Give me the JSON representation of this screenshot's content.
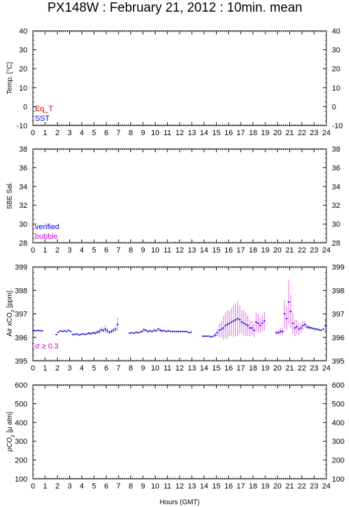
{
  "title": "PX148W : February 21, 2012 : 10min. mean",
  "xlabel": "Hours (GMT)",
  "colors": {
    "eq_t": "#cc0000",
    "sst": "#0000cc",
    "verified": "#0000cc",
    "bubble": "#cc00cc",
    "sigma": "#cc00cc",
    "air_point": "#0000cc",
    "air_error": "#ee66ee"
  },
  "chart_data": [
    {
      "type": "line",
      "ylabel": "Temp. [°C]",
      "xlim": [
        0,
        24
      ],
      "ylim": [
        -10,
        40
      ],
      "yticks": [
        -10,
        0,
        10,
        20,
        30,
        40
      ],
      "xticks": [
        0,
        1,
        2,
        3,
        4,
        5,
        6,
        7,
        8,
        9,
        10,
        11,
        12,
        13,
        14,
        15,
        16,
        17,
        18,
        19,
        20,
        21,
        22,
        23,
        24
      ],
      "legend": [
        "Eq_T",
        "SST"
      ],
      "legend_position": "bottom-left",
      "series": []
    },
    {
      "type": "line",
      "ylabel": "SBE Sal.",
      "xlim": [
        0,
        24
      ],
      "ylim": [
        28,
        38
      ],
      "yticks": [
        28,
        30,
        32,
        34,
        36,
        38
      ],
      "xticks": [
        0,
        1,
        2,
        3,
        4,
        5,
        6,
        7,
        8,
        9,
        10,
        11,
        12,
        13,
        14,
        15,
        16,
        17,
        18,
        19,
        20,
        21,
        22,
        23,
        24
      ],
      "legend": [
        "verified",
        "bubble"
      ],
      "legend_position": "bottom-left",
      "series": []
    },
    {
      "type": "scatter",
      "ylabel": "Air xCO2 [ppm]",
      "ylabel_main": "Air xCO",
      "ylabel_sub": "2",
      "ylabel_unit": " [ppm]",
      "xlim": [
        0,
        24
      ],
      "ylim": [
        395,
        399
      ],
      "yticks": [
        395,
        396,
        397,
        398,
        399
      ],
      "xticks": [
        0,
        1,
        2,
        3,
        4,
        5,
        6,
        7,
        8,
        9,
        10,
        11,
        12,
        13,
        14,
        15,
        16,
        17,
        18,
        19,
        20,
        21,
        22,
        23,
        24
      ],
      "annotation": "σ ≥ 0.3",
      "annotation_position": "bottom-left",
      "series": [
        {
          "values": [
            [
              0.08,
              396.3,
              0
            ],
            [
              0.25,
              396.28,
              0
            ],
            [
              0.42,
              396.3,
              0
            ],
            [
              0.58,
              396.28,
              0
            ],
            [
              0.75,
              396.28,
              0
            ],
            [
              1.92,
              396.12,
              0
            ],
            [
              2.08,
              396.22,
              0
            ],
            [
              2.25,
              396.28,
              0
            ],
            [
              2.42,
              396.25,
              0
            ],
            [
              2.58,
              396.28,
              0
            ],
            [
              2.75,
              396.25,
              0
            ],
            [
              2.92,
              396.3,
              0
            ],
            [
              3.08,
              396.25,
              0
            ],
            [
              3.25,
              396.12,
              0
            ],
            [
              3.42,
              396.12,
              0
            ],
            [
              3.58,
              396.15,
              0
            ],
            [
              3.75,
              396.1,
              0
            ],
            [
              3.92,
              396.12,
              0
            ],
            [
              4.08,
              396.15,
              0
            ],
            [
              4.25,
              396.12,
              0
            ],
            [
              4.42,
              396.15,
              0
            ],
            [
              4.58,
              396.18,
              0.05
            ],
            [
              4.75,
              396.15,
              0.06
            ],
            [
              4.92,
              396.2,
              0.06
            ],
            [
              5.08,
              396.18,
              0.07
            ],
            [
              5.25,
              396.22,
              0.08
            ],
            [
              5.42,
              396.25,
              0.1
            ],
            [
              5.58,
              396.32,
              0.12
            ],
            [
              5.75,
              396.3,
              0.1
            ],
            [
              5.92,
              396.35,
              0.15
            ],
            [
              6.08,
              396.28,
              0.12
            ],
            [
              6.25,
              396.22,
              0.08
            ],
            [
              6.42,
              396.25,
              0.1
            ],
            [
              6.58,
              396.3,
              0.1
            ],
            [
              6.75,
              396.35,
              0.12
            ],
            [
              6.92,
              396.55,
              0.3
            ],
            [
              7.92,
              396.18,
              0
            ],
            [
              8.08,
              396.2,
              0
            ],
            [
              8.25,
              396.18,
              0
            ],
            [
              8.42,
              396.22,
              0
            ],
            [
              8.58,
              396.2,
              0
            ],
            [
              8.75,
              396.22,
              0
            ],
            [
              8.92,
              396.25,
              0.05
            ],
            [
              9.08,
              396.32,
              0.08
            ],
            [
              9.25,
              396.3,
              0.08
            ],
            [
              9.42,
              396.25,
              0.05
            ],
            [
              9.58,
              396.28,
              0.05
            ],
            [
              9.75,
              396.25,
              0.05
            ],
            [
              9.92,
              396.3,
              0.06
            ],
            [
              10.08,
              396.28,
              0.05
            ],
            [
              10.25,
              396.35,
              0.07
            ],
            [
              10.42,
              396.3,
              0.06
            ],
            [
              10.58,
              396.28,
              0.05
            ],
            [
              10.75,
              396.28,
              0
            ],
            [
              10.92,
              396.25,
              0
            ],
            [
              11.08,
              396.28,
              0
            ],
            [
              11.25,
              396.25,
              0
            ],
            [
              11.42,
              396.25,
              0
            ],
            [
              11.58,
              396.25,
              0
            ],
            [
              11.75,
              396.25,
              0
            ],
            [
              11.92,
              396.25,
              0
            ],
            [
              12.08,
              396.25,
              0
            ],
            [
              12.25,
              396.25,
              0
            ],
            [
              12.42,
              396.25,
              0
            ],
            [
              12.58,
              396.25,
              0
            ],
            [
              12.75,
              396.2,
              0
            ],
            [
              12.92,
              396.22,
              0
            ],
            [
              13.92,
              396.05,
              0
            ],
            [
              14.08,
              396.05,
              0
            ],
            [
              14.25,
              396.05,
              0
            ],
            [
              14.42,
              396.05,
              0
            ],
            [
              14.58,
              396.02,
              0
            ],
            [
              14.75,
              396.05,
              0
            ],
            [
              14.92,
              396.1,
              0.1
            ],
            [
              15.08,
              396.2,
              0.15
            ],
            [
              15.25,
              396.3,
              0.3
            ],
            [
              15.42,
              396.35,
              0.35
            ],
            [
              15.58,
              396.4,
              0.5
            ],
            [
              15.75,
              396.5,
              0.55
            ],
            [
              15.92,
              396.55,
              0.6
            ],
            [
              16.08,
              396.6,
              0.55
            ],
            [
              16.25,
              396.65,
              0.6
            ],
            [
              16.42,
              396.7,
              0.7
            ],
            [
              16.58,
              396.75,
              0.7
            ],
            [
              16.75,
              396.8,
              0.75
            ],
            [
              16.92,
              396.75,
              0.6
            ],
            [
              17.08,
              396.65,
              0.5
            ],
            [
              17.25,
              396.6,
              0.55
            ],
            [
              17.42,
              396.55,
              0.5
            ],
            [
              17.58,
              396.5,
              0.45
            ],
            [
              17.75,
              396.4,
              0.35
            ],
            [
              17.92,
              396.4,
              0.3
            ],
            [
              18.08,
              396.3,
              0.3
            ],
            [
              18.25,
              396.65,
              0.4
            ],
            [
              18.42,
              396.6,
              0.4
            ],
            [
              18.58,
              396.5,
              0.3
            ],
            [
              18.75,
              396.6,
              0.35
            ],
            [
              18.92,
              396.7,
              0.4
            ],
            [
              19.92,
              396.2,
              0.08
            ],
            [
              20.08,
              396.2,
              0.1
            ],
            [
              20.25,
              396.25,
              0.15
            ],
            [
              20.42,
              396.25,
              0.15
            ],
            [
              20.58,
              397.0,
              0.6
            ],
            [
              20.75,
              396.8,
              0.5
            ],
            [
              20.92,
              397.5,
              0.95
            ],
            [
              21.08,
              397.1,
              0.7
            ],
            [
              21.25,
              396.6,
              0.45
            ],
            [
              21.42,
              396.4,
              0.35
            ],
            [
              21.58,
              396.45,
              0.3
            ],
            [
              21.75,
              396.35,
              0.25
            ],
            [
              21.92,
              396.4,
              0.2
            ],
            [
              22.08,
              396.5,
              0.2
            ],
            [
              22.25,
              396.55,
              0.15
            ],
            [
              22.42,
              396.45,
              0.1
            ],
            [
              22.58,
              396.42,
              0.08
            ],
            [
              22.75,
              396.4,
              0.06
            ],
            [
              22.92,
              396.38,
              0.05
            ],
            [
              23.08,
              396.35,
              0.05
            ],
            [
              23.25,
              396.35,
              0.05
            ],
            [
              23.42,
              396.32,
              0
            ],
            [
              23.58,
              396.3,
              0
            ],
            [
              23.75,
              396.35,
              0
            ],
            [
              23.92,
              396.5,
              0.3
            ]
          ]
        }
      ]
    },
    {
      "type": "line",
      "ylabel": "pCO2 [μ atm]",
      "ylabel_main": "pCO",
      "ylabel_sub": "2",
      "ylabel_unit": " [μ atm]",
      "xlim": [
        0,
        24
      ],
      "ylim": [
        100,
        600
      ],
      "yticks": [
        100,
        200,
        300,
        400,
        500,
        600
      ],
      "xticks": [
        0,
        1,
        2,
        3,
        4,
        5,
        6,
        7,
        8,
        9,
        10,
        11,
        12,
        13,
        14,
        15,
        16,
        17,
        18,
        19,
        20,
        21,
        22,
        23,
        24
      ],
      "series": []
    }
  ]
}
